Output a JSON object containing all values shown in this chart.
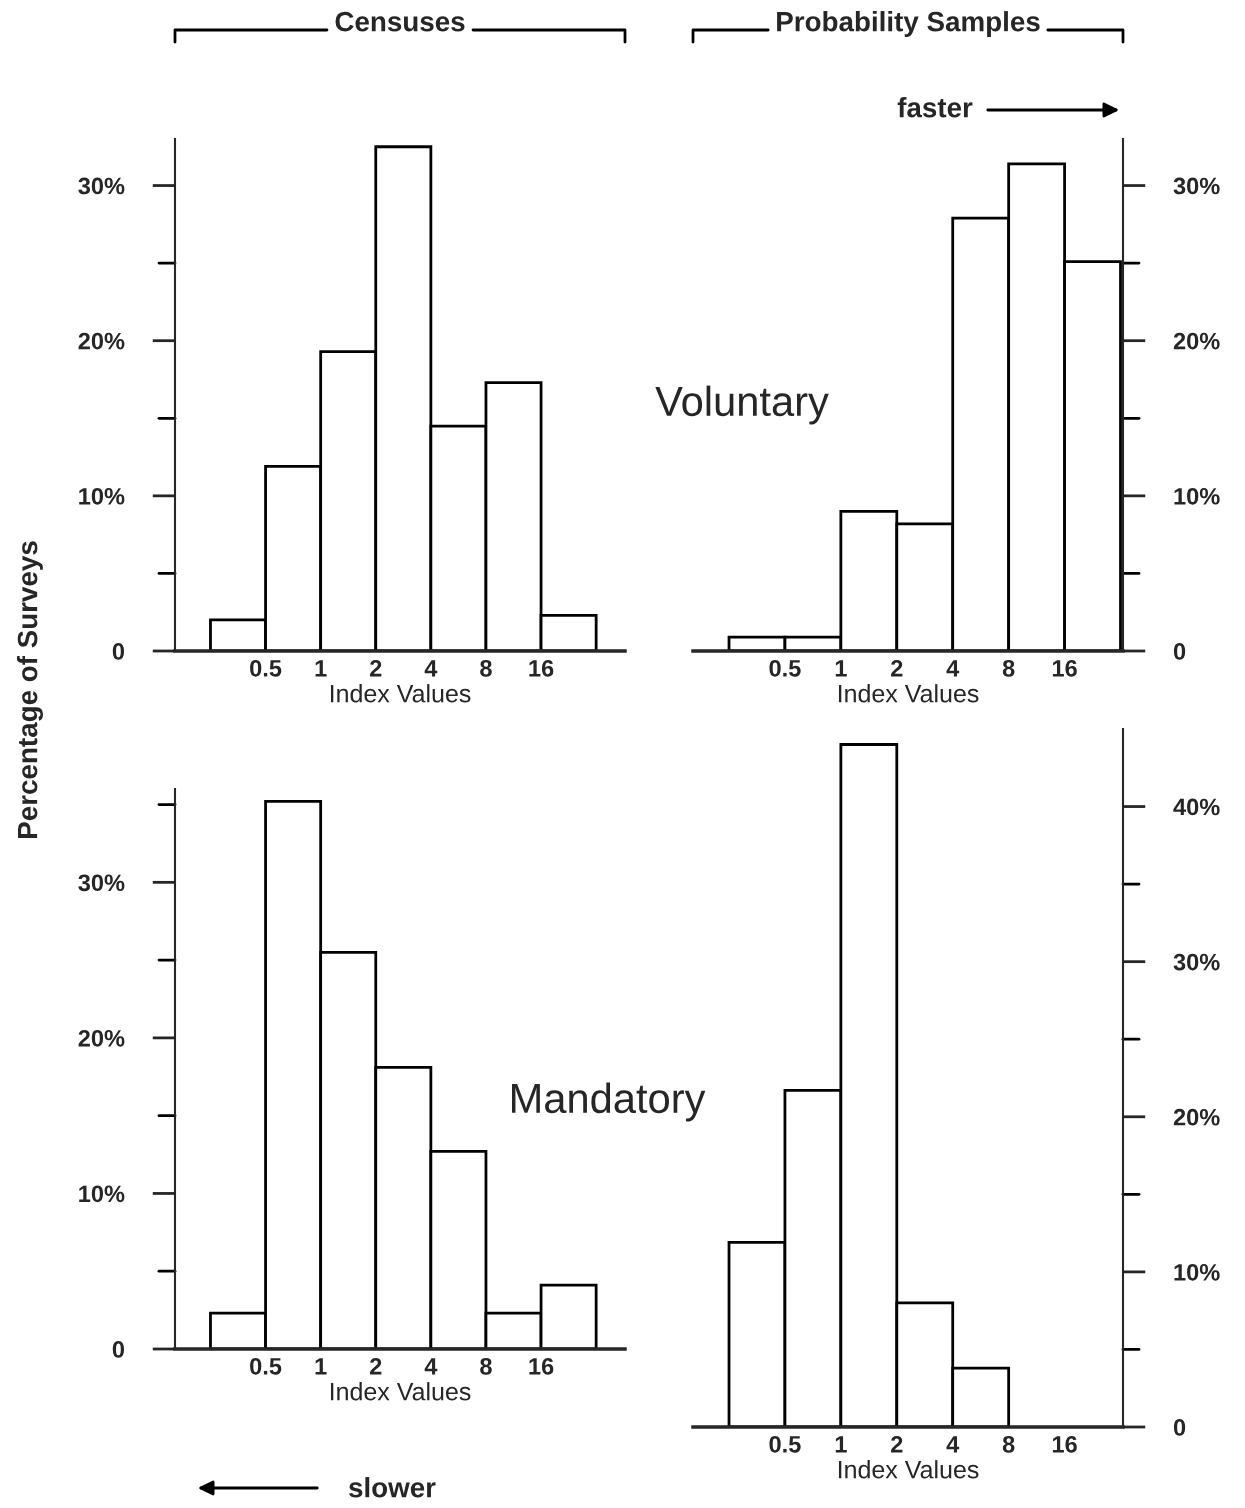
{
  "chart_data": [
    {
      "type": "histogram",
      "title": "Censuses",
      "xlabel": "Index Values",
      "ylabel": "Percentage of Surveys",
      "annotations": [
        "Voluntary"
      ],
      "log": "x",
      "color": "#ffffff",
      "bins": [
        0.25,
        0.5,
        1,
        2,
        4,
        8,
        16,
        32
      ],
      "values": [
        2,
        11.9,
        19.3,
        32.5,
        14.5,
        17.3,
        2.3
      ],
      "xlim": [
        0.16,
        46
      ],
      "xticks": [
        0.5,
        1,
        2,
        4,
        8,
        16
      ],
      "ylim": [
        0,
        33
      ],
      "yticks": [
        0,
        {
          "value": 5,
          "label": null
        },
        {
          "value": 10,
          "label": "10%"
        },
        {
          "value": 15,
          "label": null
        },
        {
          "value": 20,
          "label": "20%"
        },
        {
          "value": 25,
          "label": null
        },
        {
          "value": 30,
          "label": "30%"
        }
      ]
    },
    {
      "type": "histogram",
      "title": "Probability Samples",
      "xlabel": "Index Values",
      "annotations": [
        "faster"
      ],
      "log": "x",
      "color": "#ffffff",
      "bins": [
        0.25,
        0.5,
        1,
        2,
        4,
        8,
        16,
        32
      ],
      "values": [
        0.9,
        0.9,
        9.0,
        8.2,
        27.9,
        31.4,
        25.1
      ],
      "xlim": [
        0.16,
        33
      ],
      "xticks": [
        0.5,
        1,
        2,
        4,
        8,
        16
      ],
      "ylim": [
        0,
        33
      ],
      "yticks": [
        0,
        {
          "value": 5,
          "label": null
        },
        {
          "value": 10,
          "label": "10%"
        },
        {
          "value": 15,
          "label": null
        },
        {
          "value": 20,
          "label": "20%"
        },
        {
          "value": 25,
          "label": null
        },
        {
          "value": 30,
          "label": "30%"
        }
      ]
    },
    {
      "type": "histogram",
      "xlabel": "Index Values",
      "annotations": [
        "Mandatory",
        "slower"
      ],
      "log": "x",
      "color": "#ffffff",
      "bins": [
        0.25,
        0.5,
        1,
        2,
        4,
        8,
        16,
        32
      ],
      "values": [
        2.3,
        35.2,
        25.5,
        18.1,
        12.7,
        2.3,
        4.1
      ],
      "xlim": [
        0.16,
        46
      ],
      "xticks": [
        0.5,
        1,
        2,
        4,
        8,
        16
      ],
      "ylim": [
        0,
        36
      ],
      "yticks": [
        0,
        {
          "value": 5,
          "label": null
        },
        {
          "value": 10,
          "label": "10%"
        },
        {
          "value": 15,
          "label": null
        },
        {
          "value": 20,
          "label": "20%"
        },
        {
          "value": 25,
          "label": null
        },
        {
          "value": 30,
          "label": "30%"
        },
        {
          "value": 35,
          "label": null
        }
      ]
    },
    {
      "type": "histogram",
      "xlabel": "Index Values",
      "log": "x",
      "color": "#ffffff",
      "bins": [
        0.25,
        0.5,
        1,
        2,
        4,
        8
      ],
      "values": [
        11.9,
        21.7,
        44.0,
        8.0,
        3.8
      ],
      "xlim": [
        0.16,
        33
      ],
      "xticks": [
        0.5,
        1,
        2,
        4,
        8,
        16
      ],
      "ylim": [
        0,
        45
      ],
      "yticks": [
        0,
        {
          "value": 5,
          "label": null
        },
        {
          "value": 10,
          "label": "10%"
        },
        {
          "value": 15,
          "label": null
        },
        {
          "value": 20,
          "label": "20%"
        },
        {
          "value": 25,
          "label": null
        },
        {
          "value": 30,
          "label": "30%"
        },
        {
          "value": 35,
          "label": null
        },
        {
          "value": 40,
          "label": "40%"
        }
      ]
    }
  ]
}
